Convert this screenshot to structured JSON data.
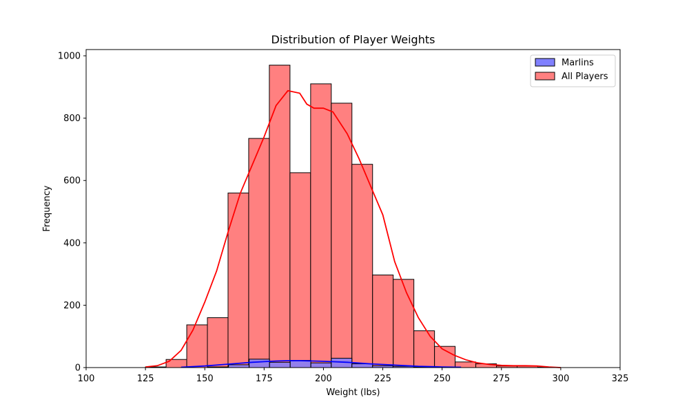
{
  "chart_data": {
    "type": "bar",
    "title": "Distribution of Player Weights",
    "xlabel": "Weight (lbs)",
    "ylabel": "Frequency",
    "xlim": [
      100,
      325
    ],
    "ylim": [
      0,
      1020
    ],
    "xticks": [
      100,
      125,
      150,
      175,
      200,
      225,
      250,
      275,
      300,
      325
    ],
    "yticks": [
      0,
      200,
      400,
      600,
      800,
      1000
    ],
    "legend_position": "top-right",
    "series": [
      {
        "name": "Marlins",
        "color": "#0000ff",
        "fill": "#8080ff",
        "bins": [
          {
            "x0": 151.3,
            "x1": 160.0,
            "value": 2
          },
          {
            "x0": 160.0,
            "x1": 168.7,
            "value": 9
          },
          {
            "x0": 168.7,
            "x1": 177.3,
            "value": 27
          },
          {
            "x0": 177.3,
            "x1": 186.0,
            "value": 17
          },
          {
            "x0": 186.0,
            "x1": 194.7,
            "value": 23
          },
          {
            "x0": 194.7,
            "x1": 203.3,
            "value": 15
          },
          {
            "x0": 203.3,
            "x1": 212.0,
            "value": 30
          },
          {
            "x0": 212.0,
            "x1": 220.7,
            "value": 12
          },
          {
            "x0": 220.7,
            "x1": 229.3,
            "value": 6
          },
          {
            "x0": 229.3,
            "x1": 238.0,
            "value": 4
          },
          {
            "x0": 238.0,
            "x1": 246.7,
            "value": 2
          }
        ],
        "kde": [
          [
            140,
            1
          ],
          [
            150,
            5
          ],
          [
            160,
            11
          ],
          [
            170,
            17
          ],
          [
            180,
            21
          ],
          [
            185,
            22
          ],
          [
            190,
            22
          ],
          [
            200,
            20
          ],
          [
            210,
            17
          ],
          [
            220,
            12
          ],
          [
            230,
            8
          ],
          [
            240,
            4
          ],
          [
            250,
            2
          ],
          [
            258,
            1
          ]
        ]
      },
      {
        "name": "All Players",
        "color": "#ff0000",
        "fill": "#ff8080",
        "bins": [
          {
            "x0": 125.0,
            "x1": 133.7,
            "value": 2
          },
          {
            "x0": 133.7,
            "x1": 142.4,
            "value": 26
          },
          {
            "x0": 142.4,
            "x1": 151.1,
            "value": 137
          },
          {
            "x0": 151.1,
            "x1": 159.8,
            "value": 160
          },
          {
            "x0": 159.8,
            "x1": 168.5,
            "value": 560
          },
          {
            "x0": 168.5,
            "x1": 177.2,
            "value": 735
          },
          {
            "x0": 177.2,
            "x1": 185.9,
            "value": 970
          },
          {
            "x0": 185.9,
            "x1": 194.6,
            "value": 625
          },
          {
            "x0": 194.6,
            "x1": 203.3,
            "value": 910
          },
          {
            "x0": 203.3,
            "x1": 212.0,
            "value": 848
          },
          {
            "x0": 212.0,
            "x1": 220.7,
            "value": 652
          },
          {
            "x0": 220.7,
            "x1": 229.4,
            "value": 297
          },
          {
            "x0": 229.4,
            "x1": 238.1,
            "value": 283
          },
          {
            "x0": 238.1,
            "x1": 246.8,
            "value": 118
          },
          {
            "x0": 246.8,
            "x1": 255.5,
            "value": 68
          },
          {
            "x0": 255.5,
            "x1": 264.2,
            "value": 18
          },
          {
            "x0": 264.2,
            "x1": 272.9,
            "value": 12
          },
          {
            "x0": 272.9,
            "x1": 281.6,
            "value": 5
          },
          {
            "x0": 281.6,
            "x1": 290.3,
            "value": 5
          },
          {
            "x0": 290.3,
            "x1": 299.0,
            "value": 1
          }
        ],
        "kde": [
          [
            125,
            2
          ],
          [
            130,
            6
          ],
          [
            135,
            20
          ],
          [
            140,
            55
          ],
          [
            145,
            120
          ],
          [
            150,
            210
          ],
          [
            155,
            310
          ],
          [
            160,
            440
          ],
          [
            165,
            560
          ],
          [
            170,
            650
          ],
          [
            175,
            740
          ],
          [
            180,
            840
          ],
          [
            185,
            888
          ],
          [
            190,
            880
          ],
          [
            193,
            845
          ],
          [
            196,
            832
          ],
          [
            200,
            832
          ],
          [
            204,
            820
          ],
          [
            210,
            750
          ],
          [
            215,
            670
          ],
          [
            220,
            580
          ],
          [
            225,
            490
          ],
          [
            230,
            340
          ],
          [
            235,
            240
          ],
          [
            240,
            160
          ],
          [
            245,
            100
          ],
          [
            250,
            60
          ],
          [
            255,
            40
          ],
          [
            260,
            25
          ],
          [
            265,
            15
          ],
          [
            270,
            10
          ],
          [
            275,
            7
          ],
          [
            280,
            6
          ],
          [
            285,
            6
          ],
          [
            290,
            5
          ],
          [
            295,
            2
          ],
          [
            300,
            0
          ]
        ]
      }
    ]
  }
}
